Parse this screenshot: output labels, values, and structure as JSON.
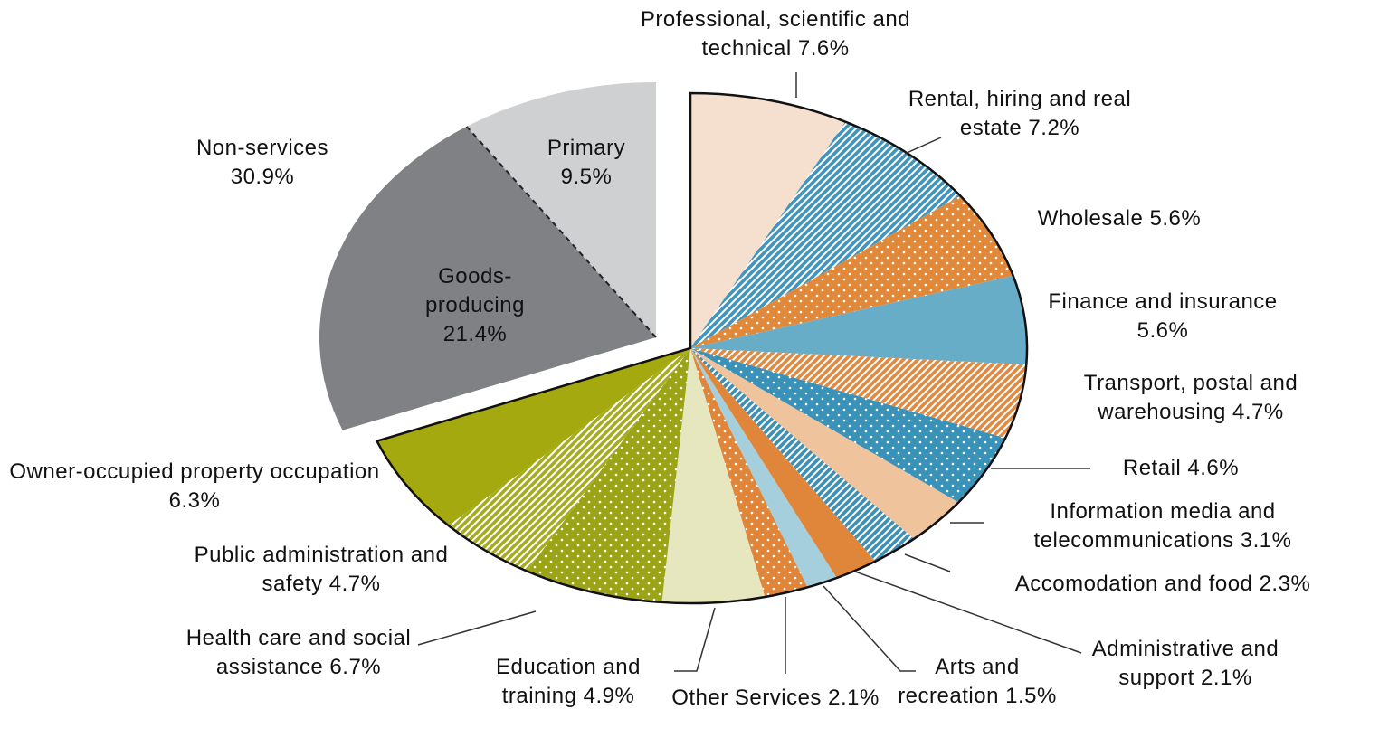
{
  "chart_data": {
    "type": "pie",
    "categories": [
      "Professional, scientific and technical",
      "Rental, hiring and real estate",
      "Wholesale",
      "Finance and insurance",
      "Transport, postal and warehousing",
      "Retail",
      "Information media and telecommunications",
      "Accomodation and food",
      "Administrative and support",
      "Arts and recreation",
      "Other Services",
      "Education and training",
      "Health care and social assistance",
      "Public administration and safety",
      "Owner-occupied property occupation",
      "Goods-producing",
      "Primary"
    ],
    "values": [
      7.6,
      7.2,
      5.6,
      5.6,
      4.7,
      4.6,
      3.1,
      2.3,
      2.1,
      1.5,
      2.1,
      4.9,
      6.7,
      4.7,
      6.3,
      21.4,
      9.5
    ],
    "value_labels": [
      "7.6%",
      "7.2%",
      "5.6%",
      "5.6%",
      "4.7%",
      "4.6%",
      "3.1%",
      "2.3%",
      "2.1%",
      "1.5%",
      "2.1%",
      "4.9%",
      "6.7%",
      "4.7%",
      "6.3%",
      "21.4%",
      "9.5%"
    ],
    "colors": [
      "#f5dfcf",
      "#3f97c0",
      "#e0893a",
      "#68adc8",
      "#e58a3d",
      "#3a92b8",
      "#efc39b",
      "#3a92b8",
      "#e0863a",
      "#a6cfdd",
      "#e0863a",
      "#e6e6bf",
      "#9ba416",
      "#a8ad1a",
      "#a4a90f",
      "#808184",
      "#cfd0d2"
    ],
    "patterns": [
      "solid",
      "hatch",
      "dots",
      "solid",
      "hatch",
      "dots",
      "solid",
      "hatch",
      "solid",
      "solid",
      "dots",
      "solid",
      "dots",
      "hatch",
      "solid",
      "solid",
      "solid"
    ],
    "annotations": [
      "Non-services 30.9%"
    ]
  }
}
